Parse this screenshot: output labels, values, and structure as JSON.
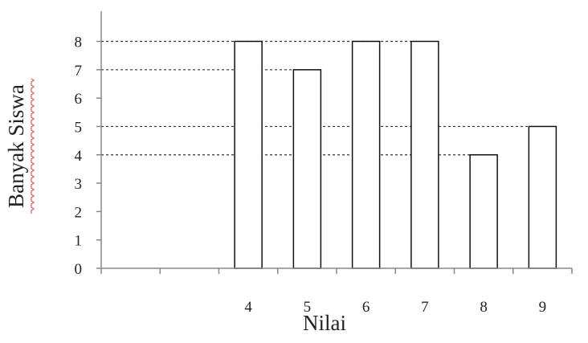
{
  "chart_data": {
    "type": "bar",
    "categories": [
      "",
      "",
      "4",
      "5",
      "6",
      "7",
      "8",
      "9"
    ],
    "values": [
      null,
      null,
      8,
      7,
      8,
      8,
      4,
      5
    ],
    "xlabel": "Nilai",
    "ylabel": "Banyak Siswa",
    "ylim": [
      0,
      8
    ],
    "yticks": [
      0,
      1,
      2,
      3,
      4,
      5,
      6,
      7,
      8
    ],
    "guide_lines": [
      8,
      7,
      5,
      4
    ],
    "grid": false,
    "colors": {
      "bar_fill": "#ffffff",
      "bar_stroke": "#111111",
      "ylabel_underline": "#e05a5a"
    }
  }
}
